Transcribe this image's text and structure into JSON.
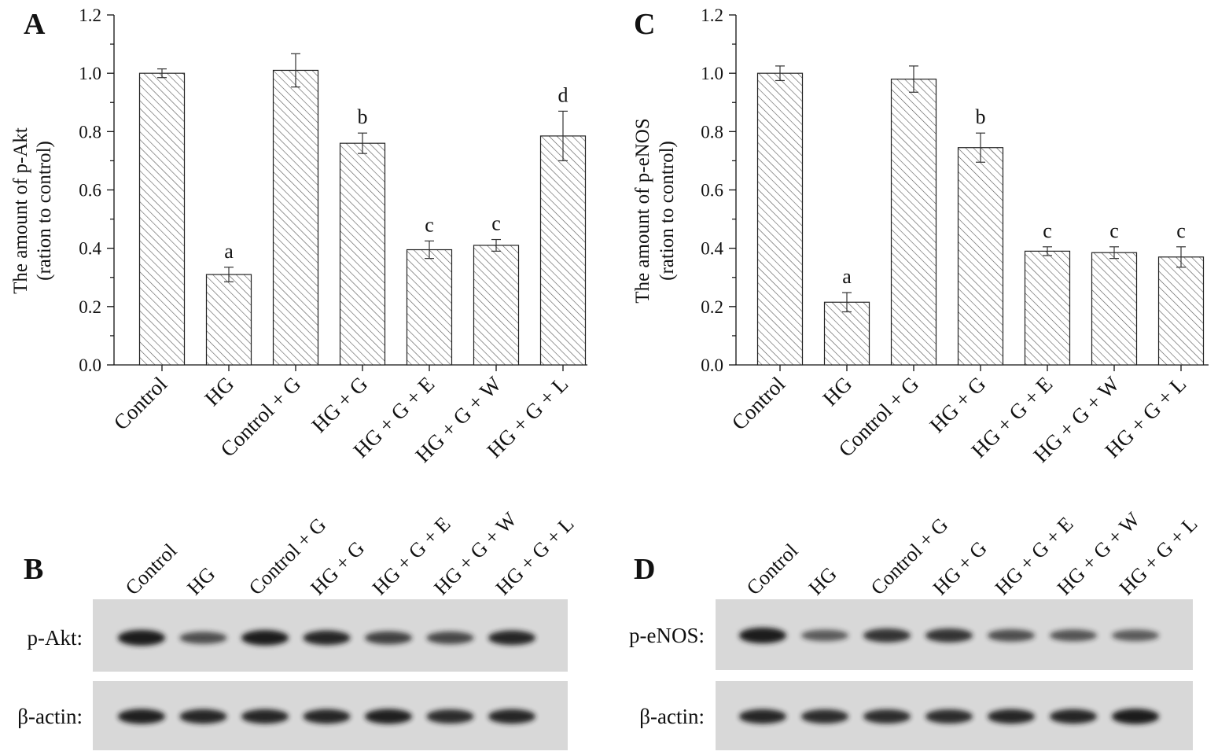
{
  "chart_data": [
    {
      "panel": "A",
      "type": "bar",
      "categories": [
        "Control",
        "HG",
        "Control + G",
        "HG + G",
        "HG + G + E",
        "HG + G + W",
        "HG + G + L"
      ],
      "values": [
        1.0,
        0.31,
        1.01,
        0.76,
        0.395,
        0.41,
        0.785
      ],
      "errors": [
        0.015,
        0.025,
        0.057,
        0.035,
        0.03,
        0.02,
        0.085
      ],
      "significance": [
        "",
        "a",
        "",
        "b",
        "c",
        "c",
        "d"
      ],
      "ylabel": [
        "The amount of p-Akt",
        "(ration to control)"
      ],
      "ylim": [
        0.0,
        1.2
      ],
      "yticks": [
        "0.0",
        "0.2",
        "0.4",
        "0.6",
        "0.8",
        "1.0",
        "1.2"
      ],
      "bar_fill": "diagonal hatch",
      "grid": false
    },
    {
      "panel": "C",
      "type": "bar",
      "categories": [
        "Control",
        "HG",
        "Control + G",
        "HG + G",
        "HG + G + E",
        "HG + G + W",
        "HG + G + L"
      ],
      "values": [
        1.0,
        0.215,
        0.98,
        0.745,
        0.39,
        0.385,
        0.37
      ],
      "errors": [
        0.025,
        0.033,
        0.045,
        0.05,
        0.015,
        0.02,
        0.035
      ],
      "significance": [
        "",
        "a",
        "",
        "b",
        "c",
        "c",
        "c"
      ],
      "ylabel": [
        "The amount of p-eNOS",
        "(ration to control)"
      ],
      "ylim": [
        0.0,
        1.2
      ],
      "yticks": [
        "0.0",
        "0.2",
        "0.4",
        "0.6",
        "0.8",
        "1.0",
        "1.2"
      ],
      "bar_fill": "diagonal hatch",
      "grid": false
    }
  ],
  "blots": [
    {
      "panel": "B",
      "lanes": [
        "Control",
        "HG",
        "Control + G",
        "HG + G",
        "HG + G + E",
        "HG + G + W",
        "HG + G + L"
      ],
      "rows": [
        {
          "label": "p-Akt:",
          "intensity": [
            1.0,
            0.55,
            0.95,
            0.85,
            0.65,
            0.6,
            0.85
          ]
        },
        {
          "label": "β-actin:",
          "intensity": [
            0.9,
            0.85,
            0.85,
            0.85,
            0.9,
            0.8,
            0.85
          ]
        }
      ]
    },
    {
      "panel": "D",
      "lanes": [
        "Control",
        "HG",
        "Control + G",
        "HG + G",
        "HG + G + E",
        "HG + G + W",
        "HG + G + L"
      ],
      "rows": [
        {
          "label": "p-eNOS:",
          "intensity": [
            1.0,
            0.45,
            0.75,
            0.75,
            0.55,
            0.5,
            0.45
          ]
        },
        {
          "label": "β-actin:",
          "intensity": [
            0.85,
            0.8,
            0.8,
            0.8,
            0.85,
            0.85,
            0.95
          ]
        }
      ]
    }
  ],
  "colors": {
    "bar_stroke": "#222222",
    "hatch": "#555555",
    "blot_bg": "#d8d8d8",
    "band": "#1a1a1a"
  }
}
